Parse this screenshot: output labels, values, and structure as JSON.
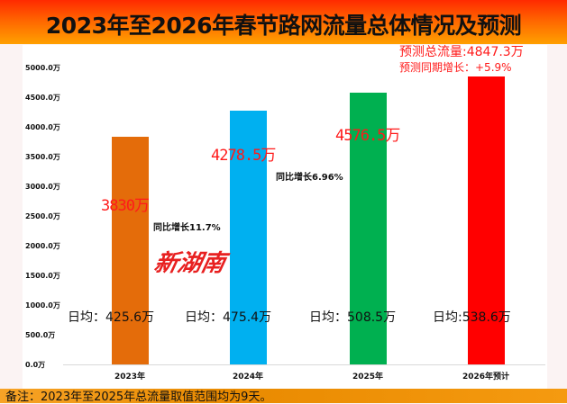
{
  "title": "2023年至2026年春节路网流量总体情况及预测",
  "note": "备注：2023年至2025年总流量取值范围均为9天。",
  "watermark": "新湖南",
  "forecast": {
    "total": "预测总流量:4847.3万",
    "growth": "预测同期增长：+5.9%"
  },
  "chart_data": {
    "type": "bar",
    "title": "2023年至2026年春节路网流量总体情况及预测",
    "categories": [
      "2023年",
      "2024年",
      "2025年",
      "2026年预计"
    ],
    "values": [
      3830,
      4278.5,
      4576.5,
      4847.3
    ],
    "colors": [
      "#e46c0a",
      "#00b0f0",
      "#00b050",
      "#ff0000"
    ],
    "ylim": [
      0,
      5000
    ],
    "yticks": [
      "0.0万",
      "500.0万",
      "1000.0万",
      "1500.0万",
      "2000.0万",
      "2500.0万",
      "3000.0万",
      "3500.0万",
      "4000.0万",
      "4500.0万",
      "5000.0万"
    ],
    "value_labels": [
      "3830万",
      "4278.5万",
      "4576.5万",
      ""
    ],
    "growth_labels": [
      "同比增长11.7%",
      "同比增长6.96%"
    ],
    "daily_labels": [
      "日均：425.6万",
      "日均：475.4万",
      "日均：508.5万",
      "日均:538.6万"
    ],
    "grid": false
  }
}
